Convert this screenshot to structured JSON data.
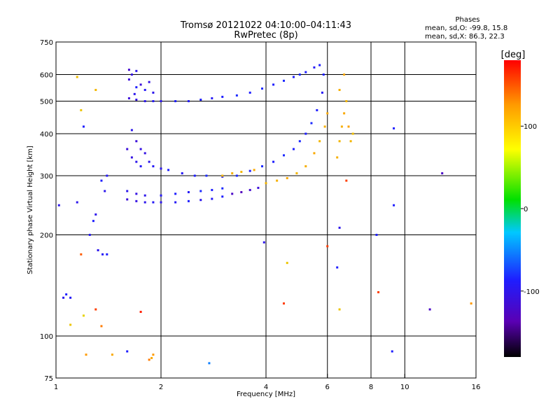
{
  "chart_data": {
    "type": "scatter",
    "title": "Tromsø 20121022 04:10:00–04:11:43",
    "subtitle": "RwPretec (8p)",
    "xlabel": "Frequency [MHz]",
    "ylabel": "Stationary phase Virtual Height [km]",
    "x_scale": "log",
    "y_scale": "log",
    "xlim": [
      1,
      16
    ],
    "ylim": [
      75,
      750
    ],
    "x_ticks": [
      1,
      2,
      4,
      6,
      8,
      10,
      16
    ],
    "x_tick_labels": [
      "1",
      "2",
      "4",
      "6",
      "8",
      "10",
      "16"
    ],
    "y_ticks": [
      75,
      100,
      200,
      300,
      400,
      500,
      600,
      750
    ],
    "y_tick_labels": [
      "75",
      "100",
      "200",
      "300",
      "400",
      "500",
      "600",
      "750"
    ],
    "grid": true,
    "stats": {
      "heading": "Phases",
      "line_o": "mean, sd,O: -99.8, 15.8",
      "line_x": "mean, sd,X:  86.3, 22.3"
    },
    "colorbar": {
      "label": "[deg]",
      "range": [
        -180,
        180
      ],
      "ticks": [
        100,
        0,
        -100
      ],
      "tick_labels": [
        "100",
        "0",
        "-100"
      ]
    },
    "series": [
      {
        "points": [
          [
            1.62,
            510,
            -120
          ],
          [
            1.7,
            505,
            -115
          ],
          [
            1.8,
            500,
            -110
          ],
          [
            1.9,
            500,
            -105
          ],
          [
            2.0,
            500,
            -110
          ],
          [
            2.2,
            500,
            -100
          ],
          [
            2.4,
            500,
            -105
          ],
          [
            2.6,
            505,
            -100
          ],
          [
            2.8,
            510,
            -105
          ],
          [
            3.0,
            515,
            -100
          ],
          [
            3.3,
            520,
            -95
          ],
          [
            3.6,
            530,
            -100
          ],
          [
            3.9,
            545,
            -95
          ],
          [
            4.2,
            560,
            -100
          ],
          [
            4.5,
            575,
            -95
          ],
          [
            4.8,
            590,
            -100
          ],
          [
            5.0,
            600,
            -95
          ],
          [
            5.2,
            610,
            -100
          ],
          [
            5.5,
            630,
            -105
          ],
          [
            5.7,
            640,
            -100
          ],
          [
            1.62,
            580,
            -120
          ],
          [
            1.65,
            600,
            -115
          ],
          [
            1.7,
            615,
            -110
          ],
          [
            1.75,
            560,
            -120
          ],
          [
            1.8,
            540,
            -105
          ],
          [
            1.85,
            570,
            -115
          ],
          [
            1.9,
            530,
            -110
          ],
          [
            1.7,
            550,
            -100
          ],
          [
            1.62,
            620,
            -125
          ],
          [
            1.68,
            525,
            -110
          ],
          [
            1.6,
            360,
            -120
          ],
          [
            1.65,
            340,
            -115
          ],
          [
            1.7,
            330,
            -110
          ],
          [
            1.75,
            320,
            -105
          ],
          [
            1.8,
            350,
            -115
          ],
          [
            1.65,
            410,
            -110
          ],
          [
            1.7,
            380,
            -120
          ],
          [
            1.75,
            360,
            -115
          ],
          [
            1.85,
            330,
            -110
          ],
          [
            1.9,
            320,
            -105
          ],
          [
            2.0,
            315,
            -110
          ],
          [
            2.1,
            312,
            -100
          ],
          [
            2.3,
            305,
            -105
          ],
          [
            2.5,
            300,
            -100
          ],
          [
            2.7,
            300,
            -95
          ],
          [
            3.0,
            298,
            -100
          ],
          [
            3.3,
            300,
            -95
          ],
          [
            3.6,
            310,
            -100
          ],
          [
            3.9,
            320,
            -95
          ],
          [
            4.2,
            330,
            -100
          ],
          [
            4.5,
            345,
            -95
          ],
          [
            4.8,
            360,
            -100
          ],
          [
            5.0,
            380,
            -95
          ],
          [
            5.2,
            400,
            -100
          ],
          [
            5.4,
            430,
            -95
          ],
          [
            5.6,
            470,
            -100
          ],
          [
            5.8,
            530,
            -105
          ],
          [
            5.85,
            600,
            -100
          ],
          [
            1.6,
            270,
            -110
          ],
          [
            1.7,
            265,
            -115
          ],
          [
            1.8,
            262,
            -110
          ],
          [
            2.0,
            262,
            -105
          ],
          [
            2.2,
            265,
            -100
          ],
          [
            2.4,
            268,
            -105
          ],
          [
            2.6,
            270,
            -95
          ],
          [
            2.8,
            272,
            -100
          ],
          [
            3.0,
            275,
            -95
          ],
          [
            1.6,
            255,
            -120
          ],
          [
            1.7,
            252,
            -115
          ],
          [
            1.8,
            250,
            -110
          ],
          [
            1.9,
            250,
            -105
          ],
          [
            2.0,
            250,
            -110
          ],
          [
            2.2,
            250,
            -105
          ],
          [
            2.4,
            252,
            -100
          ],
          [
            2.6,
            254,
            -110
          ],
          [
            2.8,
            256,
            -105
          ],
          [
            3.0,
            260,
            -100
          ],
          [
            3.2,
            265,
            -130
          ],
          [
            3.4,
            268,
            -135
          ],
          [
            3.6,
            272,
            -125
          ],
          [
            3.8,
            276,
            -120
          ],
          [
            4.0,
            285,
            110
          ],
          [
            4.3,
            290,
            115
          ],
          [
            4.6,
            295,
            120
          ],
          [
            4.9,
            305,
            110
          ],
          [
            5.2,
            320,
            115
          ],
          [
            5.5,
            350,
            120
          ],
          [
            5.7,
            380,
            110
          ],
          [
            5.9,
            420,
            115
          ],
          [
            6.0,
            460,
            120
          ],
          [
            6.5,
            380,
            110
          ],
          [
            6.6,
            420,
            115
          ],
          [
            6.7,
            460,
            120
          ],
          [
            6.8,
            500,
            110
          ],
          [
            6.5,
            540,
            115
          ],
          [
            6.7,
            600,
            120
          ],
          [
            6.9,
            420,
            125
          ],
          [
            7.0,
            380,
            110
          ],
          [
            6.4,
            340,
            115
          ],
          [
            7.1,
            400,
            105
          ],
          [
            3.0,
            300,
            110
          ],
          [
            3.2,
            305,
            115
          ],
          [
            3.4,
            308,
            110
          ],
          [
            3.7,
            312,
            120
          ],
          [
            1.35,
            290,
            -100
          ],
          [
            1.38,
            270,
            -110
          ],
          [
            1.4,
            300,
            -105
          ],
          [
            1.3,
            230,
            -110
          ],
          [
            1.28,
            220,
            -100
          ],
          [
            1.32,
            180,
            -110
          ],
          [
            1.36,
            175,
            -105
          ],
          [
            1.4,
            175,
            -100
          ],
          [
            1.05,
            130,
            -110
          ],
          [
            1.1,
            130,
            -105
          ],
          [
            1.07,
            133,
            -100
          ],
          [
            1.02,
            245,
            -110
          ],
          [
            1.2,
            420,
            -100
          ],
          [
            1.15,
            250,
            -110
          ],
          [
            1.25,
            200,
            -105
          ],
          [
            1.18,
            175,
            150
          ],
          [
            1.18,
            470,
            100
          ],
          [
            1.3,
            540,
            110
          ],
          [
            1.15,
            590,
            105
          ],
          [
            1.1,
            108,
            100
          ],
          [
            1.2,
            115,
            90
          ],
          [
            1.3,
            120,
            160
          ],
          [
            1.35,
            107,
            140
          ],
          [
            1.75,
            118,
            170
          ],
          [
            1.85,
            85,
            140
          ],
          [
            1.9,
            88,
            130
          ],
          [
            1.88,
            86,
            120
          ],
          [
            2.75,
            83,
            -60
          ],
          [
            1.45,
            88,
            120
          ],
          [
            1.22,
            88,
            130
          ],
          [
            1.6,
            90,
            -100
          ],
          [
            3.95,
            190,
            -110
          ],
          [
            4.6,
            165,
            100
          ],
          [
            4.5,
            125,
            160
          ],
          [
            6.0,
            185,
            160
          ],
          [
            6.4,
            160,
            -100
          ],
          [
            6.5,
            210,
            -110
          ],
          [
            6.5,
            120,
            100
          ],
          [
            6.8,
            290,
            160
          ],
          [
            8.3,
            200,
            -100
          ],
          [
            8.4,
            135,
            160
          ],
          [
            9.2,
            90,
            -100
          ],
          [
            9.3,
            245,
            -100
          ],
          [
            9.3,
            415,
            -100
          ],
          [
            11.8,
            120,
            -130
          ],
          [
            12.8,
            305,
            -130
          ],
          [
            15.5,
            125,
            130
          ]
        ]
      }
    ]
  }
}
